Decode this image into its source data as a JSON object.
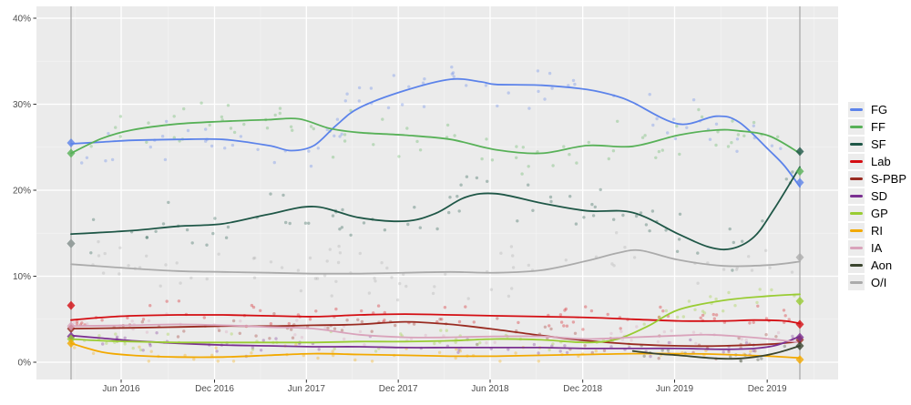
{
  "chart_data": {
    "type": "scatter",
    "title": "",
    "subtitle": "",
    "description": "Opinion polls (dots) with smoothed trend lines per party, Feb 2016 election to Feb 2020 election; diamonds mark election results",
    "x_axis": {
      "label": "",
      "tick_labels": [
        "Jun 2016",
        "Dec 2016",
        "Jun 2017",
        "Dec 2017",
        "Jun 2018",
        "Dec 2018",
        "Jun 2019",
        "Dec 2019"
      ],
      "tick_t": [
        3.3,
        9.45,
        15.5,
        21.55,
        27.6,
        33.7,
        39.75,
        45.85
      ],
      "minor_tick_t": [
        0.25,
        6.38,
        12.48,
        18.53,
        24.58,
        30.65,
        36.73,
        42.8,
        48.92
      ],
      "t_unit": "months since Feb 2016 election",
      "grid": true
    },
    "y_axis": {
      "label": "",
      "tick_labels": [
        "0%",
        "10%",
        "20%",
        "30%",
        "40%"
      ],
      "tick_values": [
        0,
        10,
        20,
        30,
        40
      ],
      "minor_tick_values": [
        5,
        15,
        25,
        35
      ],
      "range": [
        0,
        40
      ],
      "grid": true
    },
    "legend_position": "right",
    "election_marker_t": [
      0,
      48
    ],
    "series": [
      {
        "name": "FG",
        "color": "#5c83ea",
        "election_start": 25.5,
        "election_end": 20.9,
        "scatter": {
          "count": 78,
          "spread": 2.3
        },
        "trend": [
          [
            0,
            25.4
          ],
          [
            2,
            25.6
          ],
          [
            4,
            25.8
          ],
          [
            7,
            25.9
          ],
          [
            10,
            25.9
          ],
          [
            13,
            25.2
          ],
          [
            14.5,
            24.6
          ],
          [
            16,
            25.2
          ],
          [
            17.5,
            27.6
          ],
          [
            19,
            29.6
          ],
          [
            22,
            31.6
          ],
          [
            25,
            32.9
          ],
          [
            27,
            32.6
          ],
          [
            28,
            32.3
          ],
          [
            31,
            32.2
          ],
          [
            34,
            31.7
          ],
          [
            36,
            30.9
          ],
          [
            37,
            30.2
          ],
          [
            40,
            27.7
          ],
          [
            42.5,
            28.6
          ],
          [
            44,
            27.9
          ],
          [
            46,
            24.6
          ],
          [
            47,
            22.8
          ],
          [
            48,
            20.4
          ]
        ]
      },
      {
        "name": "FF",
        "color": "#58b158",
        "election_start": 24.3,
        "election_end": 22.2,
        "scatter": {
          "count": 78,
          "spread": 2.1
        },
        "trend": [
          [
            0,
            24.3
          ],
          [
            2,
            26.0
          ],
          [
            4,
            27.0
          ],
          [
            7,
            27.7
          ],
          [
            10,
            28.0
          ],
          [
            13,
            28.2
          ],
          [
            15,
            28.3
          ],
          [
            17,
            27.2
          ],
          [
            19,
            26.7
          ],
          [
            22,
            26.4
          ],
          [
            25,
            25.9
          ],
          [
            28,
            24.7
          ],
          [
            31,
            24.3
          ],
          [
            34,
            25.2
          ],
          [
            37,
            25.1
          ],
          [
            40,
            26.4
          ],
          [
            42.5,
            27.0
          ],
          [
            44,
            26.9
          ],
          [
            46,
            26.3
          ],
          [
            48,
            24.3
          ]
        ]
      },
      {
        "name": "SF",
        "color": "#1f5747",
        "election_start": 13.8,
        "election_end": 24.5,
        "scatter": {
          "count": 78,
          "spread": 1.9
        },
        "trend": [
          [
            0,
            14.9
          ],
          [
            4,
            15.3
          ],
          [
            7,
            15.8
          ],
          [
            10,
            16.1
          ],
          [
            13,
            17.2
          ],
          [
            16,
            18.1
          ],
          [
            19,
            16.8
          ],
          [
            22,
            16.4
          ],
          [
            24,
            17.3
          ],
          [
            26,
            19.2
          ],
          [
            28,
            19.6
          ],
          [
            31,
            18.5
          ],
          [
            34,
            17.6
          ],
          [
            37,
            17.4
          ],
          [
            40,
            14.9
          ],
          [
            42,
            13.4
          ],
          [
            43.5,
            13.2
          ],
          [
            45,
            14.6
          ],
          [
            46.3,
            17.8
          ],
          [
            48,
            22.7
          ]
        ]
      },
      {
        "name": "Lab",
        "color": "#d40d12",
        "election_start": 6.6,
        "election_end": 4.4,
        "scatter": {
          "count": 78,
          "spread": 1.2
        },
        "trend": [
          [
            0,
            4.9
          ],
          [
            2,
            5.2
          ],
          [
            4,
            5.4
          ],
          [
            7,
            5.5
          ],
          [
            10,
            5.5
          ],
          [
            13,
            5.4
          ],
          [
            16,
            5.3
          ],
          [
            19,
            5.5
          ],
          [
            22,
            5.6
          ],
          [
            25,
            5.5
          ],
          [
            28,
            5.4
          ],
          [
            31,
            5.3
          ],
          [
            34,
            5.2
          ],
          [
            37,
            5.0
          ],
          [
            40,
            4.8
          ],
          [
            43,
            4.8
          ],
          [
            45,
            4.9
          ],
          [
            47,
            4.8
          ],
          [
            48,
            4.5
          ]
        ]
      },
      {
        "name": "S-PBP",
        "color": "#992b21",
        "election_start": 3.9,
        "election_end": 2.6,
        "scatter": {
          "count": 60,
          "spread": 1.1
        },
        "trend": [
          [
            0,
            3.9
          ],
          [
            4,
            4.0
          ],
          [
            7,
            4.1
          ],
          [
            10,
            4.2
          ],
          [
            13,
            4.2
          ],
          [
            16,
            4.3
          ],
          [
            19,
            4.4
          ],
          [
            22,
            4.7
          ],
          [
            25,
            4.4
          ],
          [
            28,
            3.8
          ],
          [
            31,
            3.1
          ],
          [
            34,
            2.5
          ],
          [
            37,
            2.1
          ],
          [
            40,
            1.9
          ],
          [
            43,
            1.9
          ],
          [
            46,
            2.1
          ],
          [
            48,
            2.4
          ]
        ]
      },
      {
        "name": "SD",
        "color": "#7a3091",
        "election_start": 3.0,
        "election_end": 2.9,
        "scatter": {
          "count": 55,
          "spread": 0.8
        },
        "trend": [
          [
            0,
            3.1
          ],
          [
            2,
            2.8
          ],
          [
            4,
            2.5
          ],
          [
            7,
            2.2
          ],
          [
            10,
            2.0
          ],
          [
            13,
            1.9
          ],
          [
            16,
            1.8
          ],
          [
            19,
            1.8
          ],
          [
            22,
            1.7
          ],
          [
            25,
            1.7
          ],
          [
            28,
            1.7
          ],
          [
            31,
            1.7
          ],
          [
            34,
            1.6
          ],
          [
            37,
            1.6
          ],
          [
            40,
            1.6
          ],
          [
            43,
            1.5
          ],
          [
            45,
            1.6
          ],
          [
            46.5,
            2.0
          ],
          [
            48,
            3.0
          ]
        ]
      },
      {
        "name": "GP",
        "color": "#99cc33",
        "election_start": 2.7,
        "election_end": 7.1,
        "scatter": {
          "count": 65,
          "spread": 0.9
        },
        "trend": [
          [
            0,
            2.7
          ],
          [
            2,
            2.5
          ],
          [
            4,
            2.4
          ],
          [
            7,
            2.3
          ],
          [
            10,
            2.3
          ],
          [
            13,
            2.3
          ],
          [
            16,
            2.3
          ],
          [
            19,
            2.4
          ],
          [
            22,
            2.4
          ],
          [
            25,
            2.5
          ],
          [
            28,
            2.7
          ],
          [
            31,
            2.6
          ],
          [
            34,
            2.3
          ],
          [
            36,
            2.7
          ],
          [
            38,
            4.2
          ],
          [
            40,
            6.1
          ],
          [
            43,
            7.2
          ],
          [
            46,
            7.7
          ],
          [
            48,
            7.9
          ]
        ]
      },
      {
        "name": "RI",
        "color": "#f2a900",
        "election_start": 2.2,
        "election_end": 0.3,
        "scatter": {
          "count": 45,
          "spread": 0.7
        },
        "trend": [
          [
            0,
            2.2
          ],
          [
            2,
            1.2
          ],
          [
            4,
            0.8
          ],
          [
            7,
            0.6
          ],
          [
            10,
            0.6
          ],
          [
            13,
            0.8
          ],
          [
            16,
            1.0
          ],
          [
            19,
            0.9
          ],
          [
            22,
            0.8
          ],
          [
            25,
            0.7
          ],
          [
            28,
            0.7
          ],
          [
            31,
            0.8
          ],
          [
            34,
            0.9
          ],
          [
            37,
            1.0
          ],
          [
            40,
            1.0
          ],
          [
            43,
            0.9
          ],
          [
            46,
            0.7
          ],
          [
            48,
            0.5
          ]
        ]
      },
      {
        "name": "IA",
        "color": "#d9a3bb",
        "election_start": 4.2,
        "election_end": null,
        "scatter": {
          "count": 50,
          "spread": 1.0
        },
        "trend": [
          [
            0,
            4.2
          ],
          [
            4,
            4.3
          ],
          [
            7,
            4.4
          ],
          [
            10,
            4.3
          ],
          [
            13,
            4.1
          ],
          [
            16,
            3.9
          ],
          [
            19,
            3.2
          ],
          [
            22,
            2.9
          ],
          [
            25,
            2.9
          ],
          [
            28,
            3.0
          ],
          [
            31,
            3.0
          ],
          [
            34,
            2.7
          ],
          [
            37,
            2.9
          ],
          [
            40,
            3.1
          ],
          [
            42,
            3.2
          ],
          [
            44,
            3.0
          ],
          [
            46,
            2.7
          ],
          [
            48,
            2.3
          ]
        ]
      },
      {
        "name": "Aon",
        "color": "#3a452f",
        "election_start": null,
        "election_end": 1.9,
        "scatter": {
          "count": 14,
          "spread": 0.5
        },
        "trend": [
          [
            37,
            1.3
          ],
          [
            38.5,
            1.0
          ],
          [
            40,
            0.8
          ],
          [
            42,
            0.5
          ],
          [
            43.5,
            0.4
          ],
          [
            45,
            0.6
          ],
          [
            46.5,
            1.1
          ],
          [
            48,
            1.9
          ]
        ]
      },
      {
        "name": "O/I",
        "color": "#ababab",
        "election_start": 13.8,
        "election_end": 12.2,
        "scatter": {
          "count": 80,
          "spread": 2.2
        },
        "trend": [
          [
            0,
            11.4
          ],
          [
            4,
            10.9
          ],
          [
            7,
            10.6
          ],
          [
            10,
            10.5
          ],
          [
            13,
            10.4
          ],
          [
            16,
            10.3
          ],
          [
            19,
            10.3
          ],
          [
            22,
            10.4
          ],
          [
            25,
            10.5
          ],
          [
            28,
            10.4
          ],
          [
            31,
            10.7
          ],
          [
            34,
            11.8
          ],
          [
            36,
            12.7
          ],
          [
            37.5,
            13.0
          ],
          [
            40,
            11.9
          ],
          [
            43,
            11.2
          ],
          [
            46,
            11.3
          ],
          [
            48,
            11.7
          ]
        ]
      }
    ],
    "style": {
      "panel_bg": "#ebebeb",
      "grid_major_color": "#ffffff",
      "grid_minor_color": "#f4f4f4",
      "axis_text_color": "#4d4d4d",
      "tick_mark_color": "#333333",
      "election_line_color": "#9e9e9e",
      "legend_key_bg": "#ececec",
      "scatter_opacity": 0.32,
      "scatter_radius": 1.7,
      "line_width": 1.8,
      "scatter_seed": 1337
    }
  }
}
